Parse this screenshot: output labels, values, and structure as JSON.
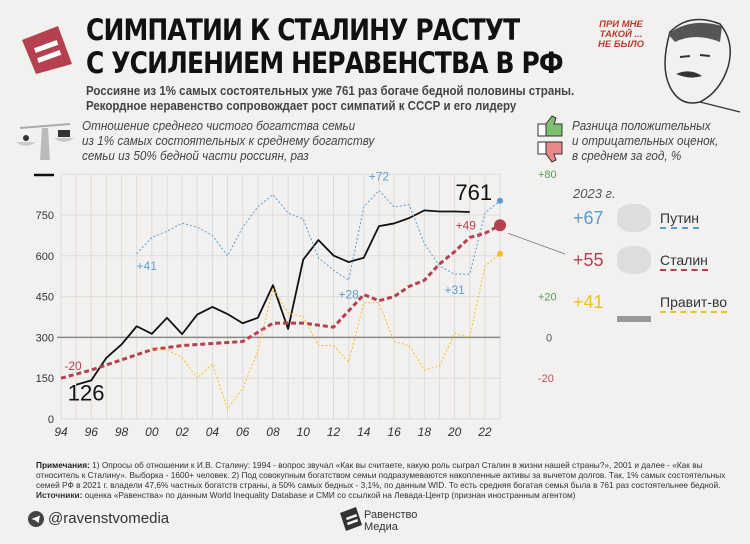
{
  "header": {
    "title_line1": "СИМПАТИИ К СТАЛИНУ РАСТУТ",
    "title_line2": "С УСИЛЕНИЕМ НЕРАВЕНСТВА В РФ",
    "subtitle_line1": "Россияне из 1% самых состоятельных уже 761 раз богаче бедной половины страны.",
    "subtitle_line2": "Рекордное неравенство сопровождает рост симпатий к СССР и его лидеру",
    "quote_line1": "ПРИ МНЕ",
    "quote_line2": "ТАКОЙ ...",
    "quote_line3": "НЕ БЫЛО",
    "brand_color": "#b5404f"
  },
  "left_desc": {
    "line1": "Отношение среднего чистого богатства семьи",
    "line2": "из 1% самых состоятельных к среднему богатству",
    "line3": "семьи из 50% бедной части россиян, раз"
  },
  "right_desc": {
    "line1": "Разница положительных",
    "line2": "и отрицательных оценок,",
    "line3": "в среднем за год, %"
  },
  "legend": {
    "year": "2023 г.",
    "items": [
      {
        "value": "+67",
        "label": "Путин",
        "color": "#5b9bd5",
        "icon": "putin-portrait-icon"
      },
      {
        "value": "+55",
        "label": "Сталин",
        "color": "#b5404f",
        "icon": "stalin-portrait-icon"
      },
      {
        "value": "+41",
        "label": "Правит-во",
        "color": "#f0c020",
        "icon": "government-building-icon"
      }
    ]
  },
  "chart_data": {
    "type": "line",
    "xlabel": "",
    "ylabel": "",
    "x_tick_labels": [
      "94",
      "96",
      "98",
      "00",
      "02",
      "04",
      "06",
      "08",
      "10",
      "12",
      "14",
      "16",
      "18",
      "20",
      "22"
    ],
    "left_axis": {
      "ticks": [
        "0",
        "150",
        "300",
        "450",
        "600",
        "750"
      ],
      "range": [
        0,
        810
      ]
    },
    "right_axis": {
      "ticks": [
        {
          "label": "+80",
          "value": 80,
          "color": "#5a9a5a"
        },
        {
          "label": "+20",
          "value": 20,
          "color": "#5a9a5a"
        },
        {
          "label": "0",
          "value": 0,
          "color": "#555555"
        },
        {
          "label": "-20",
          "value": -20,
          "color": "#c0505a"
        }
      ],
      "range": [
        -40,
        80
      ]
    },
    "grid": true,
    "series": [
      {
        "axis": "left",
        "color": "#111111",
        "style": "solid",
        "x": [
          1995,
          1996,
          1997,
          1998,
          1999,
          2000,
          2001,
          2002,
          2003,
          2004,
          2005,
          2006,
          2007,
          2008,
          2009,
          2010,
          2011,
          2012,
          2013,
          2014,
          2015,
          2016,
          2017,
          2018,
          2019,
          2020,
          2021
        ],
        "y": [
          126,
          142,
          225,
          274,
          341,
          313,
          372,
          312,
          384,
          412,
          386,
          352,
          372,
          492,
          331,
          586,
          658,
          601,
          577,
          593,
          709,
          719,
          739,
          767,
          763,
          763,
          761
        ]
      },
      {
        "axis": "right",
        "color": "#5b9bd5",
        "style": "dotted",
        "x": [
          1999,
          2000,
          2001,
          2002,
          2003,
          2004,
          2005,
          2006,
          2007,
          2008,
          2009,
          2010,
          2011,
          2012,
          2013,
          2014,
          2015,
          2016,
          2017,
          2018,
          2019,
          2020,
          2021,
          2022,
          2023
        ],
        "y": [
          41,
          49,
          52,
          56,
          54,
          50,
          40,
          54,
          64,
          70,
          61,
          58,
          39,
          33,
          28,
          64,
          72,
          64,
          65,
          46,
          35,
          31,
          31,
          61,
          67
        ]
      },
      {
        "axis": "right",
        "color": "#b5404f",
        "style": "dashed",
        "x": [
          1994,
          1996,
          1998,
          2000,
          2001,
          2002,
          2004,
          2006,
          2008,
          2010,
          2012,
          2014,
          2015,
          2016,
          2017,
          2018,
          2019,
          2020,
          2021,
          2022,
          2023
        ],
        "y": [
          -20,
          -16,
          -11,
          -6,
          -5,
          -4,
          -3,
          -2,
          7,
          7,
          5,
          21,
          18,
          20,
          25,
          28,
          36,
          42,
          49,
          51,
          55
        ]
      },
      {
        "axis": "right",
        "color": "#f0c020",
        "style": "dotted",
        "x": [
          2000,
          2001,
          2002,
          2003,
          2004,
          2005,
          2006,
          2007,
          2008,
          2009,
          2010,
          2011,
          2012,
          2013,
          2014,
          2015,
          2016,
          2017,
          2018,
          2019,
          2020,
          2021,
          2022,
          2023
        ],
        "y": [
          -6,
          -6,
          -10,
          -20,
          -13,
          -35,
          -25,
          -7,
          24,
          12,
          10,
          -4,
          -4,
          -12,
          17,
          17,
          -2,
          -4,
          -16,
          -14,
          2,
          0,
          35,
          41
        ]
      }
    ],
    "annotations": [
      {
        "text": "126",
        "color": "#111111",
        "x": 1995,
        "y": 126,
        "axis": "left"
      },
      {
        "text": "761",
        "color": "#111111",
        "x": 2021,
        "y": 761,
        "axis": "left"
      },
      {
        "text": "+41",
        "color": "#5b9bd5",
        "x": 1999,
        "y": 41,
        "axis": "right"
      },
      {
        "text": "+72",
        "color": "#5b9bd5",
        "x": 2015,
        "y": 72,
        "axis": "right"
      },
      {
        "text": "+28",
        "color": "#5b9bd5",
        "x": 2013,
        "y": 28,
        "axis": "right"
      },
      {
        "text": "+31",
        "color": "#5b9bd5",
        "x": 2020,
        "y": 31,
        "axis": "right"
      },
      {
        "text": "+49",
        "color": "#b5404f",
        "x": 2021,
        "y": 49,
        "axis": "right"
      },
      {
        "text": "-20",
        "color": "#b5404f",
        "x": 1994,
        "y": -20,
        "axis": "right"
      }
    ]
  },
  "footer": {
    "notes_label": "Примечания:",
    "notes_text": " 1) Опросы об отношении к И.В. Сталину: 1994 - вопрос звучал «Как вы считаете, какую роль сыграл Сталин в жизни нашей страны?», 2001 и далее - «Как вы относитель к Сталину». Выборка - 1600+ человек. 2) Под совокупным богатством семьи подразумеваются накопленные активы за вычетом долгов. Так, 1% самых состоятельных семей РФ в 2021 г. владели 47,6% частных богатств страны, а 50% самых бедных - 3,1%, по данным WID. То есть средняя богатая семья была в 761 раз состоятельнее бедной.",
    "sources_label": "Источники:",
    "sources_text": " оценка «Равенства» по данным World Inequality Database и СМИ со ссылкой на Левада-Центр (признан иностранным агентом)",
    "handle": "@ravenstvomedia",
    "brand_line1": "Равенство",
    "brand_line2": "Медиа"
  }
}
